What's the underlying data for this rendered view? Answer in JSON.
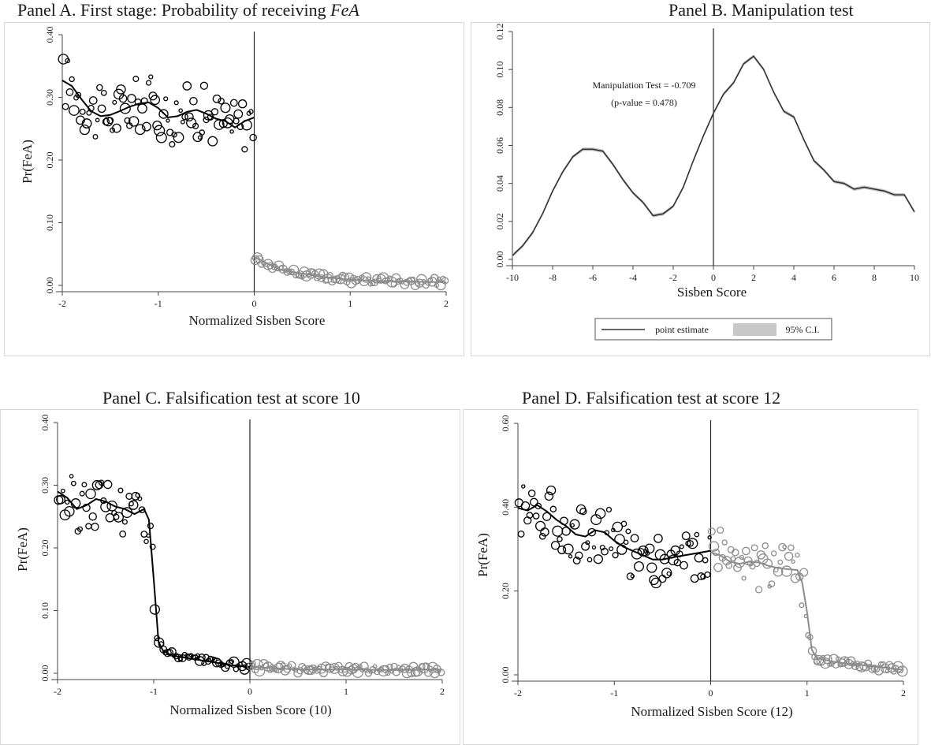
{
  "panels": {
    "a": {
      "title_main": "Panel A. First stage: Probability of receiving ",
      "title_italic": "FeA"
    },
    "b": {
      "title": "Panel B. Manipulation test"
    },
    "c": {
      "title": "Panel C. Falsification test at score 10"
    },
    "d": {
      "title": "Panel D. Falsification test at score 12"
    }
  },
  "chart_data": [
    {
      "id": "panel-a",
      "type": "scatter",
      "title": "Panel A. First stage: Probability of receiving FeA",
      "xlabel": "Normalized Sisben Score",
      "ylabel": "Pr(FeA)",
      "xlim": [
        -2,
        2
      ],
      "ylim": [
        0,
        0.4
      ],
      "xticks": [
        "-2",
        "-1",
        "0",
        "1",
        "2"
      ],
      "yticks": [
        "0.00",
        "0.10",
        "0.20",
        "0.30",
        "0.40"
      ],
      "cutoff": 0,
      "series": [
        {
          "side": "left",
          "color": "#000000",
          "fit": [
            [
              -2.0,
              0.327
            ],
            [
              -1.9,
              0.318
            ],
            [
              -1.8,
              0.297
            ],
            [
              -1.7,
              0.278
            ],
            [
              -1.6,
              0.27
            ],
            [
              -1.5,
              0.272
            ],
            [
              -1.4,
              0.278
            ],
            [
              -1.3,
              0.285
            ],
            [
              -1.2,
              0.29
            ],
            [
              -1.1,
              0.292
            ],
            [
              -1.0,
              0.283
            ],
            [
              -0.9,
              0.268
            ],
            [
              -0.8,
              0.27
            ],
            [
              -0.7,
              0.277
            ],
            [
              -0.6,
              0.28
            ],
            [
              -0.5,
              0.274
            ],
            [
              -0.4,
              0.266
            ],
            [
              -0.3,
              0.262
            ],
            [
              -0.2,
              0.252
            ],
            [
              -0.1,
              0.262
            ],
            [
              0.0,
              0.268
            ]
          ]
        },
        {
          "side": "right",
          "color": "#8c8c8c",
          "fit": [
            [
              0.0,
              0.045
            ],
            [
              0.1,
              0.038
            ],
            [
              0.2,
              0.03
            ],
            [
              0.3,
              0.024
            ],
            [
              0.5,
              0.019
            ],
            [
              0.7,
              0.014
            ],
            [
              1.0,
              0.009
            ],
            [
              1.3,
              0.007
            ],
            [
              1.6,
              0.006
            ],
            [
              2.0,
              0.005
            ]
          ]
        }
      ]
    },
    {
      "id": "panel-b",
      "type": "line",
      "title": "Panel B. Manipulation test",
      "xlabel": "Sisben Score",
      "ylabel": "",
      "xlim": [
        -10,
        10
      ],
      "ylim": [
        0,
        0.12
      ],
      "xticks": [
        "-10",
        "-8",
        "-6",
        "-4",
        "-2",
        "0",
        "2",
        "4",
        "6",
        "8",
        "10"
      ],
      "yticks": [
        "0.00",
        "0.02",
        "0.04",
        "0.06",
        "0.08",
        "0.10",
        "0.12"
      ],
      "cutoff": 0,
      "annotation": [
        "Manipulation Test = -0.709",
        "(p-value = 0.478)"
      ],
      "legend": {
        "placement": "bottom",
        "items": [
          "point estimate",
          "95% C.I."
        ]
      },
      "series": [
        {
          "name": "point estimate",
          "color": "#333333",
          "x": [
            -10,
            -9.5,
            -9,
            -8.5,
            -8,
            -7.5,
            -7,
            -6.5,
            -6,
            -5.5,
            -5,
            -4.5,
            -4,
            -3.5,
            -3,
            -2.5,
            -2,
            -1.5,
            -1,
            -0.5,
            0,
            0.5,
            1,
            1.5,
            2,
            2.5,
            3,
            3.5,
            4,
            4.5,
            5,
            5.5,
            6,
            6.5,
            7,
            7.5,
            8,
            8.5,
            9,
            9.5,
            10
          ],
          "y": [
            0.002,
            0.007,
            0.014,
            0.024,
            0.036,
            0.046,
            0.054,
            0.058,
            0.058,
            0.057,
            0.05,
            0.042,
            0.035,
            0.03,
            0.023,
            0.024,
            0.028,
            0.038,
            0.052,
            0.065,
            0.077,
            0.087,
            0.093,
            0.103,
            0.107,
            0.1,
            0.088,
            0.078,
            0.075,
            0.063,
            0.052,
            0.047,
            0.041,
            0.04,
            0.037,
            0.038,
            0.037,
            0.036,
            0.034,
            0.034,
            0.025
          ]
        }
      ]
    },
    {
      "id": "panel-c",
      "type": "scatter",
      "title": "Panel C. Falsification test at score 10",
      "xlabel": "Normalized Sisben Score   (10)",
      "ylabel": "Pr(FeA)",
      "xlim": [
        -2,
        2
      ],
      "ylim": [
        0,
        0.4
      ],
      "xticks": [
        "-2",
        "-1",
        "0",
        "1",
        "2"
      ],
      "yticks": [
        "0.00",
        "0.10",
        "0.20",
        "0.30",
        "0.40"
      ],
      "cutoff": 0,
      "series": [
        {
          "side": "left",
          "color": "#000000",
          "fit": [
            [
              -2.0,
              0.29
            ],
            [
              -1.9,
              0.28
            ],
            [
              -1.8,
              0.262
            ],
            [
              -1.7,
              0.268
            ],
            [
              -1.6,
              0.278
            ],
            [
              -1.5,
              0.274
            ],
            [
              -1.4,
              0.266
            ],
            [
              -1.3,
              0.262
            ],
            [
              -1.2,
              0.254
            ],
            [
              -1.1,
              0.262
            ],
            [
              -1.05,
              0.245
            ],
            [
              -1.0,
              0.15
            ],
            [
              -0.95,
              0.05
            ],
            [
              -0.9,
              0.035
            ],
            [
              -0.8,
              0.028
            ],
            [
              -0.6,
              0.023
            ],
            [
              -0.4,
              0.018
            ],
            [
              -0.2,
              0.013
            ],
            [
              0.0,
              0.01
            ]
          ]
        },
        {
          "side": "right",
          "color": "#8c8c8c",
          "fit": [
            [
              0.0,
              0.01
            ],
            [
              0.5,
              0.006
            ],
            [
              1.0,
              0.006
            ],
            [
              1.5,
              0.005
            ],
            [
              2.0,
              0.006
            ]
          ]
        }
      ]
    },
    {
      "id": "panel-d",
      "type": "scatter",
      "title": "Panel D. Falsification test at score 12",
      "xlabel": "Normalized  Sisben Score (12)",
      "ylabel": "Pr(FeA)",
      "xlim": [
        -2,
        2
      ],
      "ylim": [
        0,
        0.6
      ],
      "xticks": [
        "-2",
        "-1",
        "0",
        "1",
        "2"
      ],
      "yticks": [
        "0.00",
        "0.20",
        "0.40",
        "0.60"
      ],
      "cutoff": 0,
      "series": [
        {
          "side": "left",
          "color": "#000000",
          "fit": [
            [
              -2.0,
              0.398
            ],
            [
              -1.9,
              0.392
            ],
            [
              -1.8,
              0.405
            ],
            [
              -1.7,
              0.39
            ],
            [
              -1.6,
              0.37
            ],
            [
              -1.5,
              0.355
            ],
            [
              -1.4,
              0.335
            ],
            [
              -1.3,
              0.33
            ],
            [
              -1.2,
              0.345
            ],
            [
              -1.1,
              0.34
            ],
            [
              -1.0,
              0.32
            ],
            [
              -0.9,
              0.305
            ],
            [
              -0.8,
              0.295
            ],
            [
              -0.7,
              0.285
            ],
            [
              -0.6,
              0.275
            ],
            [
              -0.5,
              0.275
            ],
            [
              -0.4,
              0.28
            ],
            [
              -0.2,
              0.288
            ],
            [
              0.0,
              0.296
            ]
          ]
        },
        {
          "side": "right",
          "color": "#8c8c8c",
          "fit": [
            [
              0.0,
              0.292
            ],
            [
              0.1,
              0.285
            ],
            [
              0.2,
              0.27
            ],
            [
              0.3,
              0.265
            ],
            [
              0.4,
              0.27
            ],
            [
              0.5,
              0.268
            ],
            [
              0.6,
              0.26
            ],
            [
              0.7,
              0.255
            ],
            [
              0.8,
              0.252
            ],
            [
              0.9,
              0.25
            ],
            [
              0.95,
              0.22
            ],
            [
              1.0,
              0.15
            ],
            [
              1.05,
              0.06
            ],
            [
              1.1,
              0.04
            ],
            [
              1.3,
              0.03
            ],
            [
              1.5,
              0.025
            ],
            [
              1.7,
              0.02
            ],
            [
              2.0,
              0.012
            ]
          ]
        }
      ]
    }
  ]
}
